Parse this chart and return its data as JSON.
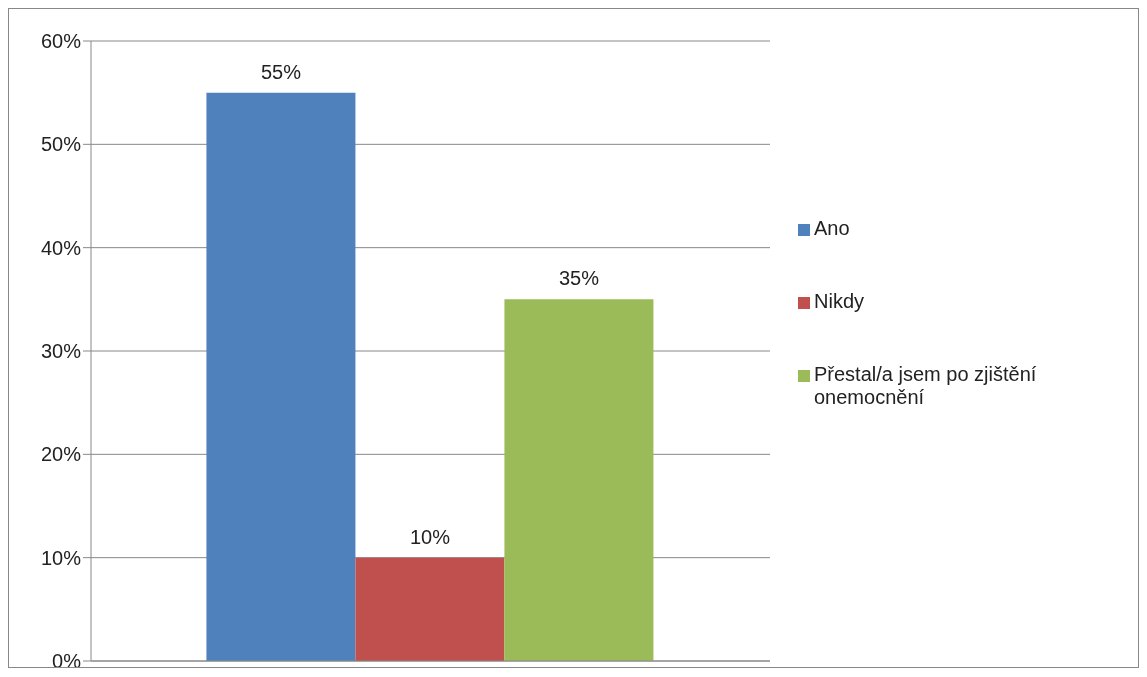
{
  "chart_data": {
    "type": "bar",
    "categories": [
      null
    ],
    "series": [
      {
        "name": "Ano",
        "color": "#4f81bd",
        "values": [
          55
        ],
        "value_labels": [
          "55%"
        ]
      },
      {
        "name": "Nikdy",
        "color": "#c0504d",
        "values": [
          10
        ],
        "value_labels": [
          "10%"
        ]
      },
      {
        "name": "Přestal/a jsem po zjištění onemocnění",
        "color": "#9bbb59",
        "values": [
          35
        ],
        "value_labels": [
          "35%"
        ]
      }
    ],
    "ylim": [
      0,
      60
    ],
    "yticks": [
      {
        "value": 0,
        "label": "0%"
      },
      {
        "value": 10,
        "label": "10%"
      },
      {
        "value": 20,
        "label": "20%"
      },
      {
        "value": 30,
        "label": "30%"
      },
      {
        "value": 40,
        "label": "40%"
      },
      {
        "value": 50,
        "label": "50%"
      },
      {
        "value": 60,
        "label": "60%"
      }
    ],
    "grid": "y",
    "legend": "right"
  }
}
